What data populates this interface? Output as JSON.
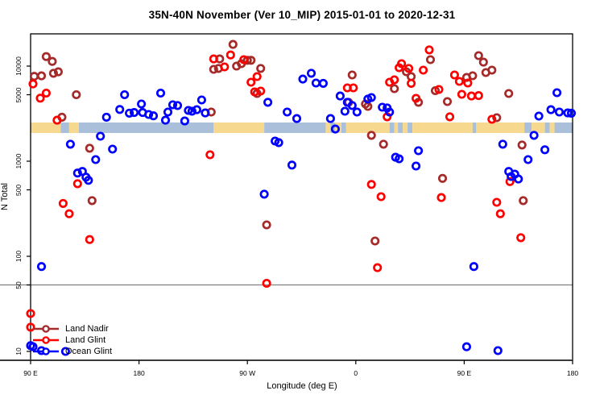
{
  "title": "35N-40N November (Ver 10_MIP)   2015-01-01 to 2020-12-31",
  "chart_data": {
    "type": "scatter",
    "title": "35N-40N November (Ver 10_MIP)   2015-01-01 to 2020-12-31",
    "xlabel": "Longitude (deg E)",
    "ylabel": "N Total",
    "x_axis": {
      "range_deg_east_continuous": [
        90,
        540
      ],
      "ticks": [
        {
          "value": 90,
          "label": "90 E"
        },
        {
          "value": 180,
          "label": "180"
        },
        {
          "value": 270,
          "label": "90 W"
        },
        {
          "value": 360,
          "label": "0"
        },
        {
          "value": 450,
          "label": "90 E"
        },
        {
          "value": 540,
          "label": "180"
        }
      ]
    },
    "y_axis": {
      "scale": "log10",
      "ticks": [
        {
          "value": 10,
          "label": "10"
        },
        {
          "value": 50,
          "label": "50"
        },
        {
          "value": 100,
          "label": "100"
        },
        {
          "value": 500,
          "label": "500"
        },
        {
          "value": 1000,
          "label": "1000"
        },
        {
          "value": 5000,
          "label": "5000"
        },
        {
          "value": 10000,
          "label": "10000"
        }
      ],
      "gridline_at": 50,
      "gridline_color": "#808080"
    },
    "map_strip": {
      "land_color": "#F6D98E",
      "ocean_color": "#AABFD9",
      "segments": [
        {
          "from": 90,
          "to": 115,
          "surface": "land"
        },
        {
          "from": 115,
          "to": 122,
          "surface": "ocean"
        },
        {
          "from": 122,
          "to": 130,
          "surface": "land"
        },
        {
          "from": 130,
          "to": 242,
          "surface": "ocean"
        },
        {
          "from": 242,
          "to": 284,
          "surface": "land"
        },
        {
          "from": 284,
          "to": 335,
          "surface": "ocean"
        },
        {
          "from": 335,
          "to": 339,
          "surface": "land"
        },
        {
          "from": 339,
          "to": 343,
          "surface": "ocean"
        },
        {
          "from": 343,
          "to": 348,
          "surface": "land"
        },
        {
          "from": 348,
          "to": 352,
          "surface": "ocean"
        },
        {
          "from": 352,
          "to": 388,
          "surface": "land"
        },
        {
          "from": 388,
          "to": 392,
          "surface": "ocean"
        },
        {
          "from": 392,
          "to": 395,
          "surface": "land"
        },
        {
          "from": 395,
          "to": 399,
          "surface": "ocean"
        },
        {
          "from": 399,
          "to": 403,
          "surface": "land"
        },
        {
          "from": 403,
          "to": 407,
          "surface": "ocean"
        },
        {
          "from": 407,
          "to": 457,
          "surface": "land"
        },
        {
          "from": 457,
          "to": 460,
          "surface": "ocean"
        },
        {
          "from": 460,
          "to": 500,
          "surface": "land"
        },
        {
          "from": 500,
          "to": 506,
          "surface": "ocean"
        },
        {
          "from": 506,
          "to": 517,
          "surface": "land"
        },
        {
          "from": 517,
          "to": 521,
          "surface": "ocean"
        },
        {
          "from": 521,
          "to": 525,
          "surface": "land"
        },
        {
          "from": 525,
          "to": 540,
          "surface": "ocean"
        }
      ]
    },
    "series": [
      {
        "name": "Land Nadir",
        "color": "#A52A2A",
        "points": [
          [
            103,
            12600
          ],
          [
            108,
            11200
          ],
          [
            113,
            8700
          ],
          [
            109,
            8400
          ],
          [
            99,
            7900
          ],
          [
            93,
            7800
          ],
          [
            128,
            5000
          ],
          [
            116,
            2900
          ],
          [
            139,
            1370
          ],
          [
            141,
            385
          ],
          [
            258,
            16900
          ],
          [
            247,
            11900
          ],
          [
            242,
            9250
          ],
          [
            246,
            9450
          ],
          [
            261,
            10000
          ],
          [
            265,
            10600
          ],
          [
            270,
            11500
          ],
          [
            273,
            11500
          ],
          [
            281,
            9450
          ],
          [
            278,
            5150
          ],
          [
            240,
            3290
          ],
          [
            286,
            214
          ],
          [
            357,
            8070
          ],
          [
            354,
            4160
          ],
          [
            368,
            4000
          ],
          [
            370,
            3770
          ],
          [
            392,
            5790
          ],
          [
            402,
            8730
          ],
          [
            406,
            7760
          ],
          [
            422,
            11700
          ],
          [
            412,
            4160
          ],
          [
            426,
            5520
          ],
          [
            373,
            1870
          ],
          [
            383,
            1510
          ],
          [
            376,
            145
          ],
          [
            462,
            12900
          ],
          [
            466,
            11000
          ],
          [
            473,
            9070
          ],
          [
            468,
            8550
          ],
          [
            457,
            7910
          ],
          [
            452,
            7600
          ],
          [
            436,
            4240
          ],
          [
            487,
            5150
          ],
          [
            477,
            2870
          ],
          [
            498,
            1480
          ],
          [
            432,
            660
          ],
          [
            499,
            385
          ]
        ]
      },
      {
        "name": "Land Glint",
        "color": "#FF0000",
        "points": [
          [
            92,
            6500
          ],
          [
            103,
            5200
          ],
          [
            98,
            4600
          ],
          [
            112,
            2700
          ],
          [
            129,
            580
          ],
          [
            117,
            360
          ],
          [
            122,
            280
          ],
          [
            139,
            150
          ],
          [
            90,
            25
          ],
          [
            90,
            18
          ],
          [
            256,
            13100
          ],
          [
            242,
            11900
          ],
          [
            251,
            9800
          ],
          [
            267,
            11700
          ],
          [
            278,
            7760
          ],
          [
            273,
            6770
          ],
          [
            276,
            5360
          ],
          [
            281,
            5460
          ],
          [
            239,
            1170
          ],
          [
            286,
            52
          ],
          [
            353,
            5900
          ],
          [
            358,
            5900
          ],
          [
            386,
            2930
          ],
          [
            392,
            7180
          ],
          [
            388,
            6770
          ],
          [
            398,
            10600
          ],
          [
            396,
            9620
          ],
          [
            404,
            9450
          ],
          [
            406,
            6580
          ],
          [
            421,
            14800
          ],
          [
            416,
            9070
          ],
          [
            410,
            4580
          ],
          [
            429,
            5680
          ],
          [
            373,
            570
          ],
          [
            381,
            424
          ],
          [
            378,
            76
          ],
          [
            442,
            8070
          ],
          [
            446,
            6900
          ],
          [
            453,
            6640
          ],
          [
            448,
            5050
          ],
          [
            456,
            4850
          ],
          [
            462,
            4900
          ],
          [
            438,
            2930
          ],
          [
            473,
            2760
          ],
          [
            488,
            610
          ],
          [
            431,
            415
          ],
          [
            477,
            370
          ],
          [
            480,
            280
          ],
          [
            497,
            157
          ]
        ]
      },
      {
        "name": "Ocean Glint",
        "color": "#0000FF",
        "points": [
          [
            168,
            5000
          ],
          [
            198,
            5200
          ],
          [
            182,
            4000
          ],
          [
            164,
            3500
          ],
          [
            172,
            3200
          ],
          [
            176,
            3250
          ],
          [
            183,
            3250
          ],
          [
            188,
            3100
          ],
          [
            192,
            3000
          ],
          [
            153,
            2900
          ],
          [
            202,
            2700
          ],
          [
            148,
            1830
          ],
          [
            123,
            1510
          ],
          [
            158,
            1340
          ],
          [
            144,
            1040
          ],
          [
            133,
            780
          ],
          [
            129,
            750
          ],
          [
            136,
            680
          ],
          [
            138,
            630
          ],
          [
            99,
            78
          ],
          [
            90,
            11.5
          ],
          [
            92,
            11.2
          ],
          [
            99,
            10.2
          ],
          [
            119,
            10
          ],
          [
            287,
            4160
          ],
          [
            208,
            3920
          ],
          [
            212,
            3850
          ],
          [
            204,
            3290
          ],
          [
            221,
            3420
          ],
          [
            224,
            3350
          ],
          [
            228,
            3480
          ],
          [
            232,
            4410
          ],
          [
            218,
            2650
          ],
          [
            235,
            3220
          ],
          [
            303,
            3290
          ],
          [
            311,
            2810
          ],
          [
            293,
            1630
          ],
          [
            296,
            1570
          ],
          [
            307,
            910
          ],
          [
            284,
            450
          ],
          [
            316,
            7300
          ],
          [
            323,
            8400
          ],
          [
            327,
            6640
          ],
          [
            333,
            6580
          ],
          [
            347,
            4850
          ],
          [
            353,
            4160
          ],
          [
            357,
            3850
          ],
          [
            361,
            3290
          ],
          [
            351,
            3350
          ],
          [
            370,
            4500
          ],
          [
            373,
            4670
          ],
          [
            382,
            3700
          ],
          [
            386,
            3630
          ],
          [
            388,
            3290
          ],
          [
            339,
            2810
          ],
          [
            343,
            2180
          ],
          [
            393,
            1100
          ],
          [
            396,
            1060
          ],
          [
            412,
            1290
          ],
          [
            410,
            890
          ],
          [
            527,
            5250
          ],
          [
            522,
            3480
          ],
          [
            512,
            2980
          ],
          [
            529,
            3290
          ],
          [
            536,
            3220
          ],
          [
            539,
            3200
          ],
          [
            508,
            1870
          ],
          [
            482,
            1510
          ],
          [
            503,
            1040
          ],
          [
            517,
            1320
          ],
          [
            487,
            780
          ],
          [
            492,
            730
          ],
          [
            489,
            690
          ],
          [
            495,
            650
          ],
          [
            458,
            78
          ],
          [
            452,
            11.2
          ],
          [
            478,
            10.2
          ]
        ]
      }
    ],
    "legend_position": "bottom-left",
    "grid": "single horizontal line at y=50"
  }
}
